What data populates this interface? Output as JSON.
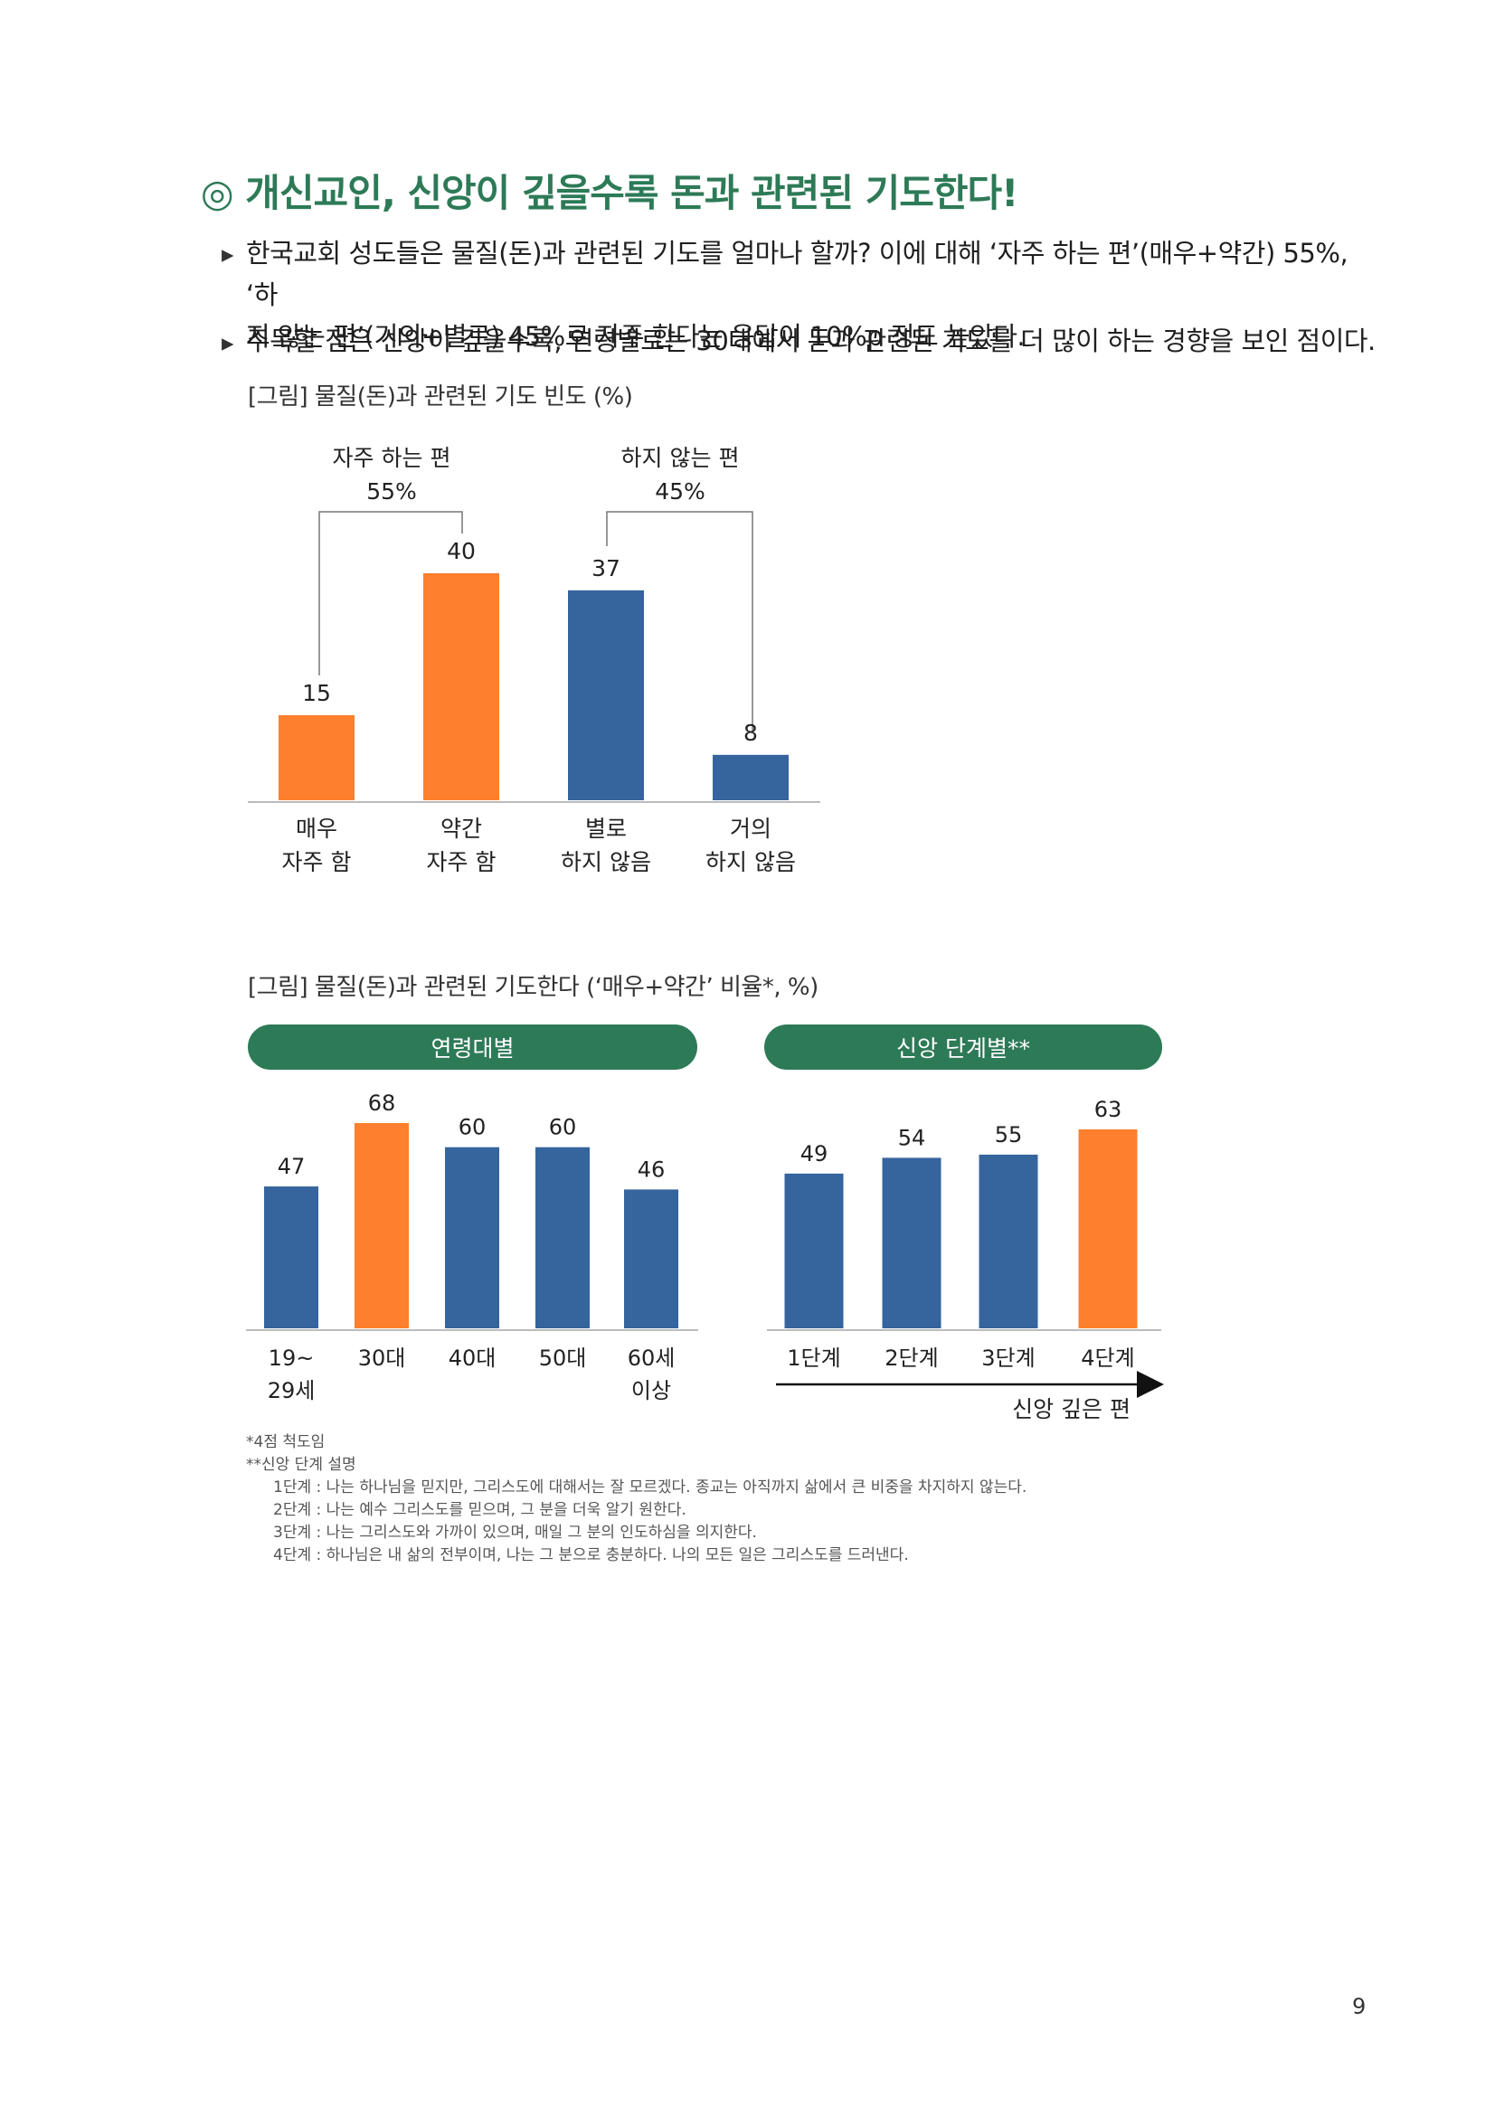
{
  "section": {
    "title": "◎ 개신교인, 신앙이 깊을수록 돈과 관련된 기도한다!",
    "bullets": [
      {
        "line1": "한국교회 성도들은 물질(돈)과 관련된 기도를 얼마나 할까? 이에 대해 ‘자주 하는 편’(매우+약간) 55%, ‘하",
        "line2": "지 않는 편’(거의+별로) 45%로 자주 한다는 응답이 10%p 정도 높았다."
      },
      {
        "line1": "주목할 점은 신앙이 깊을수록, 연령별로는 30대에서 돈과 관련된 기도를 더 많이 하는 경향을 보인 점이다."
      }
    ]
  },
  "figure1": {
    "caption": "[그림] 물질(돈)과 관련된 기도 빈도 (%)",
    "group_often": {
      "label": "자주 하는 편",
      "value": "55%"
    },
    "group_not": {
      "label": "하지 않는 편",
      "value": "45%"
    }
  },
  "figure2": {
    "caption": "[그림] 물질(돈)과 관련된 기도한다 (‘매우+약간’ 비율*, %)",
    "panel_age_title": "연령대별",
    "panel_faith_title": "신앙 단계별**",
    "arrow_label": "신앙 깊은 편"
  },
  "chart_data": [
    {
      "type": "bar",
      "categories": [
        [
          "매우",
          "자주 함"
        ],
        [
          "약간",
          "자주 함"
        ],
        [
          "별로",
          "하지 않음"
        ],
        [
          "거의",
          "하지 않음"
        ]
      ],
      "values": [
        15,
        40,
        37,
        8
      ],
      "colors": [
        "#fe7f2d",
        "#fe7f2d",
        "#36649c",
        "#36649c"
      ],
      "ylim": [
        0,
        40
      ]
    },
    {
      "type": "bar",
      "categories": [
        [
          "19~",
          "29세"
        ],
        [
          "30대"
        ],
        [
          "40대"
        ],
        [
          "50대"
        ],
        [
          "60세",
          "이상"
        ]
      ],
      "values": [
        47,
        68,
        60,
        60,
        46
      ],
      "colors": [
        "#36649c",
        "#fe7f2d",
        "#36649c",
        "#36649c",
        "#36649c"
      ],
      "ylim": [
        0,
        68
      ]
    },
    {
      "type": "bar",
      "categories": [
        [
          "1단계"
        ],
        [
          "2단계"
        ],
        [
          "3단계"
        ],
        [
          "4단계"
        ]
      ],
      "values": [
        49,
        54,
        55,
        63
      ],
      "colors": [
        "#36649c",
        "#36649c",
        "#36649c",
        "#fe7f2d"
      ],
      "ylim": [
        0,
        63
      ]
    }
  ],
  "footnotes": {
    "scale": "*4점 척도임",
    "stage_heading": "**신앙 단계 설명",
    "stages": [
      "1단계 : 나는 하나님을 믿지만, 그리스도에 대해서는 잘 모르겠다. 종교는 아직까지 삶에서 큰 비중을 차지하지 않는다.",
      "2단계 : 나는 예수 그리스도를 믿으며, 그 분을 더욱 알기 원한다.",
      "3단계 : 나는 그리스도와 가까이 있으며, 매일 그 분의 인도하심을 의지한다.",
      "4단계 : 하나님은 내 삶의 전부이며, 나는 그 분으로 충분하다. 나의 모든 일은 그리스도를 드러낸다."
    ]
  },
  "page_number": "9"
}
